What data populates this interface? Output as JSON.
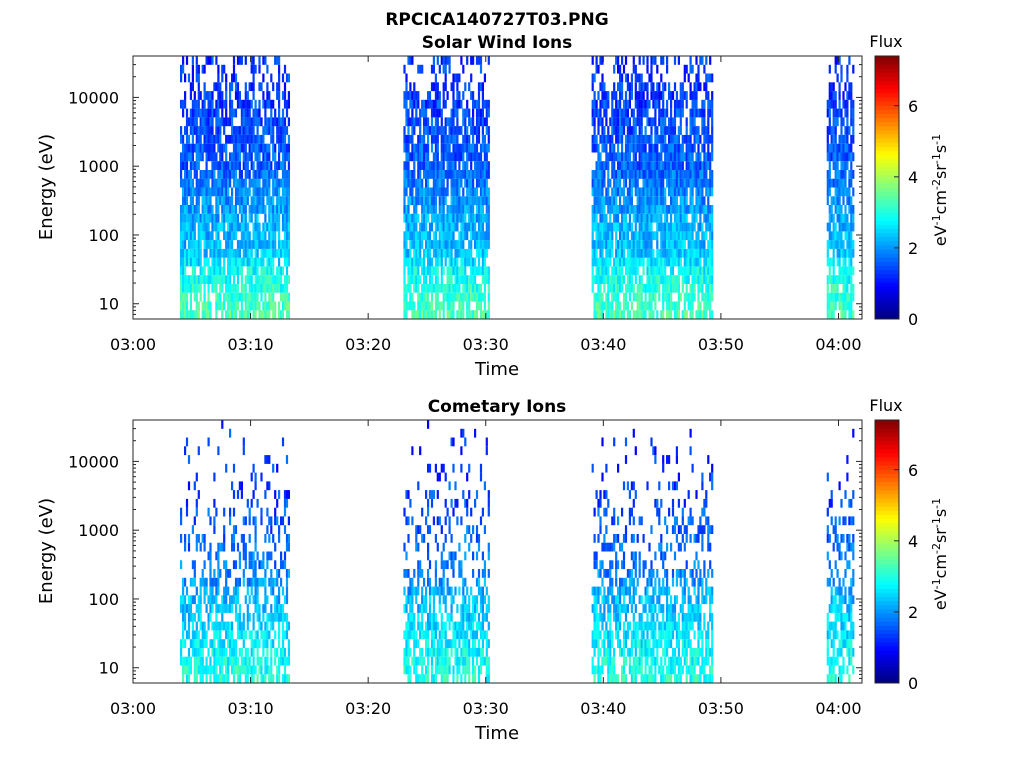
{
  "figure_title": "RPCICA140727T03.PNG",
  "chart_data": [
    {
      "type": "heatmap",
      "title": "Solar Wind Ions",
      "xlabel": "Time",
      "ylabel": "Energy (eV)",
      "x_range": [
        "03:00",
        "04:02"
      ],
      "x_ticks": [
        "03:00",
        "03:10",
        "03:20",
        "03:30",
        "03:40",
        "03:50",
        "04:00"
      ],
      "y_scale": "log",
      "y_range": [
        6,
        40000
      ],
      "y_ticks": [
        "10",
        "100",
        "1000",
        "10000"
      ],
      "y_tick_values": [
        10,
        100,
        1000,
        10000
      ],
      "colorbar": {
        "label": "Flux",
        "units": "eV-1cm-2sr-1s-1",
        "range": [
          0,
          7.4
        ],
        "ticks": [
          "0",
          "2",
          "4",
          "6"
        ],
        "tick_values": [
          0,
          2,
          4,
          6
        ],
        "colormap": "jet"
      },
      "data_intervals": [
        [
          "03:04",
          "03:13"
        ],
        [
          "03:23",
          "03:30"
        ],
        [
          "03:39",
          "03:49"
        ],
        [
          "03:59",
          "04:01"
        ]
      ],
      "energy_profile": [
        {
          "energy": 8,
          "flux": 3.3,
          "fill": 0.75
        },
        {
          "energy": 30,
          "flux": 2.8,
          "fill": 0.85
        },
        {
          "energy": 60,
          "flux": 2.3,
          "fill": 0.9
        },
        {
          "energy": 150,
          "flux": 2.2,
          "fill": 0.85
        },
        {
          "energy": 400,
          "flux": 1.9,
          "fill": 0.85
        },
        {
          "energy": 1000,
          "flux": 1.6,
          "fill": 0.85
        },
        {
          "energy": 3000,
          "flux": 1.5,
          "fill": 0.8
        },
        {
          "energy": 10000,
          "flux": 1.35,
          "fill": 0.65
        },
        {
          "energy": 25000,
          "flux": 1.3,
          "fill": 0.3
        }
      ],
      "grid": false
    },
    {
      "type": "heatmap",
      "title": "Cometary Ions",
      "xlabel": "Time",
      "ylabel": "Energy (eV)",
      "x_range": [
        "03:00",
        "04:02"
      ],
      "x_ticks": [
        "03:00",
        "03:10",
        "03:20",
        "03:30",
        "03:40",
        "03:50",
        "04:00"
      ],
      "y_scale": "log",
      "y_range": [
        6,
        40000
      ],
      "y_ticks": [
        "10",
        "100",
        "1000",
        "10000"
      ],
      "y_tick_values": [
        10,
        100,
        1000,
        10000
      ],
      "colorbar": {
        "label": "Flux",
        "units": "eV-1cm-2sr-1s-1",
        "range": [
          0,
          7.4
        ],
        "ticks": [
          "0",
          "2",
          "4",
          "6"
        ],
        "tick_values": [
          0,
          2,
          4,
          6
        ],
        "colormap": "jet"
      },
      "data_intervals": [
        [
          "03:04",
          "03:13"
        ],
        [
          "03:23",
          "03:30"
        ],
        [
          "03:39",
          "03:49"
        ],
        [
          "03:59",
          "04:01"
        ]
      ],
      "energy_profile": [
        {
          "energy": 8,
          "flux": 3.0,
          "fill": 0.7
        },
        {
          "energy": 30,
          "flux": 2.6,
          "fill": 0.75
        },
        {
          "energy": 90,
          "flux": 2.3,
          "fill": 0.6
        },
        {
          "energy": 300,
          "flux": 1.8,
          "fill": 0.35
        },
        {
          "energy": 1000,
          "flux": 1.6,
          "fill": 0.3
        },
        {
          "energy": 3000,
          "flux": 1.4,
          "fill": 0.18
        },
        {
          "energy": 10000,
          "flux": 1.3,
          "fill": 0.08
        },
        {
          "energy": 25000,
          "flux": 1.3,
          "fill": 0.04
        }
      ],
      "grid": false
    }
  ]
}
